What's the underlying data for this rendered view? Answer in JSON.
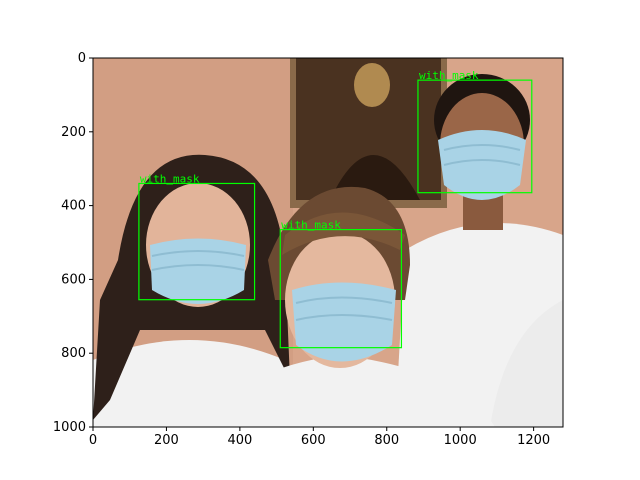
{
  "colors": {
    "box": "#00ff00",
    "wall": "#d8a58a",
    "skin": "#e2b49a",
    "hair_dark": "#2e201a",
    "hair_brown": "#6b4a32",
    "mask": "#a9d3e6",
    "shirt": "#f2f2f2",
    "painting": "#4a3220"
  },
  "axes": {
    "x_ticks": [
      "0",
      "200",
      "400",
      "600",
      "800",
      "1000",
      "1200"
    ],
    "y_ticks": [
      "0",
      "200",
      "400",
      "600",
      "800",
      "1000"
    ]
  },
  "chart_data": {
    "type": "image",
    "xlim": [
      0,
      1280
    ],
    "ylim": [
      1000,
      0
    ],
    "x_tick_values": [
      0,
      200,
      400,
      600,
      800,
      1000,
      1200
    ],
    "y_tick_values": [
      0,
      200,
      400,
      600,
      800,
      1000
    ],
    "detections": [
      {
        "label": "with_mask",
        "x1": 125,
        "y1": 340,
        "x2": 440,
        "y2": 655
      },
      {
        "label": "with_mask",
        "x1": 510,
        "y1": 465,
        "x2": 840,
        "y2": 785
      },
      {
        "label": "with_mask",
        "x1": 885,
        "y1": 60,
        "x2": 1195,
        "y2": 365
      }
    ]
  }
}
